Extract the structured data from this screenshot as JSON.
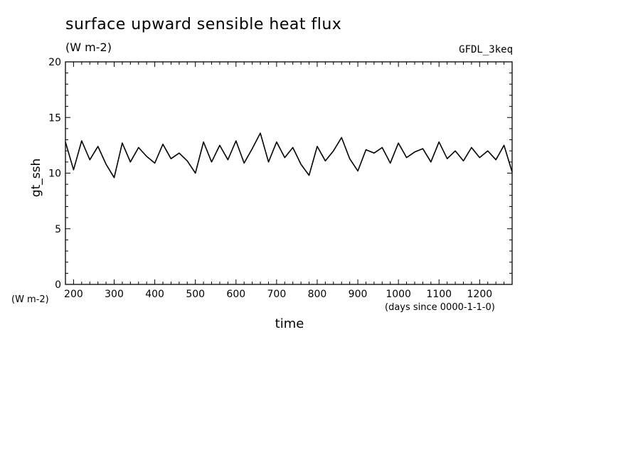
{
  "chart_data": {
    "type": "line",
    "title": "surface upward sensible heat flux",
    "units": "(W m-2)",
    "source_label": "GFDL_3keq",
    "ylabel": "gt_ssh",
    "y_units": "(W m-2)",
    "xlabel": "time",
    "x_units": "(days since 0000-1-1-0)",
    "xlim": [
      180,
      1280
    ],
    "ylim": [
      0,
      20
    ],
    "x_ticks": [
      200,
      300,
      400,
      500,
      600,
      700,
      800,
      900,
      1000,
      1100,
      1200
    ],
    "y_ticks": [
      0,
      5,
      10,
      15,
      20
    ],
    "grid": false,
    "series": [
      {
        "color": "#000000",
        "x": [
          180,
          200,
          220,
          240,
          260,
          280,
          300,
          320,
          340,
          360,
          380,
          400,
          420,
          440,
          460,
          480,
          500,
          520,
          540,
          560,
          580,
          600,
          620,
          640,
          660,
          680,
          700,
          720,
          740,
          760,
          780,
          800,
          820,
          840,
          860,
          880,
          900,
          920,
          940,
          960,
          980,
          1000,
          1020,
          1040,
          1060,
          1080,
          1100,
          1120,
          1140,
          1160,
          1180,
          1200,
          1220,
          1240,
          1260,
          1280
        ],
        "y": [
          12.8,
          10.3,
          12.9,
          11.2,
          12.4,
          10.8,
          9.6,
          12.7,
          11.0,
          12.3,
          11.5,
          10.9,
          12.6,
          11.3,
          11.8,
          11.1,
          10.0,
          12.8,
          11.0,
          12.5,
          11.2,
          12.9,
          10.9,
          12.2,
          13.6,
          11.0,
          12.8,
          11.4,
          12.3,
          10.8,
          9.8,
          12.4,
          11.1,
          12.0,
          13.2,
          11.3,
          10.2,
          12.1,
          11.8,
          12.3,
          10.9,
          12.7,
          11.4,
          11.9,
          12.2,
          11.0,
          12.8,
          11.3,
          12.0,
          11.1,
          12.3,
          11.4,
          12.0,
          11.2,
          12.5,
          10.1
        ]
      }
    ]
  }
}
